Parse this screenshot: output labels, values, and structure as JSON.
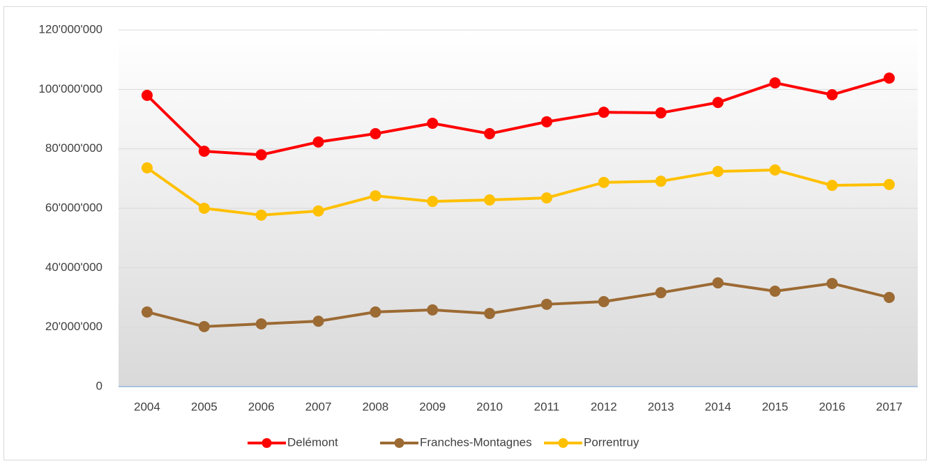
{
  "chart_data": {
    "type": "line",
    "categories": [
      "2004",
      "2005",
      "2006",
      "2007",
      "2008",
      "2009",
      "2010",
      "2011",
      "2012",
      "2013",
      "2014",
      "2015",
      "2016",
      "2017"
    ],
    "series": [
      {
        "name": "Delémont",
        "color": "#ff0000",
        "values": [
          98000000,
          79200000,
          78000000,
          82300000,
          85100000,
          88600000,
          85100000,
          89100000,
          92300000,
          92100000,
          95600000,
          102200000,
          98200000,
          103800000
        ]
      },
      {
        "name": "Franches-Montagnes",
        "color": "#9c6a33",
        "values": [
          25100000,
          20200000,
          21100000,
          22000000,
          25100000,
          25800000,
          24600000,
          27700000,
          28600000,
          31600000,
          34900000,
          32100000,
          34700000,
          30000000
        ]
      },
      {
        "name": "Porrentruy",
        "color": "#ffc000",
        "values": [
          73600000,
          60000000,
          57700000,
          59100000,
          64200000,
          62300000,
          62800000,
          63500000,
          68700000,
          69100000,
          72400000,
          72900000,
          67700000,
          68000000
        ]
      }
    ],
    "ylim": [
      0,
      120000000
    ],
    "yticks": [
      0,
      {
        "value": 20000000,
        "label": "20'000'000"
      },
      {
        "value": 40000000,
        "label": "40'000'000"
      },
      {
        "value": 60000000,
        "label": "60'000'000"
      },
      {
        "value": 80000000,
        "label": "80'000'000"
      },
      {
        "value": 100000000,
        "label": "100'000'000"
      },
      {
        "value": 120000000,
        "label": "120'000'000"
      }
    ],
    "grid": true,
    "legend": "bottom"
  }
}
